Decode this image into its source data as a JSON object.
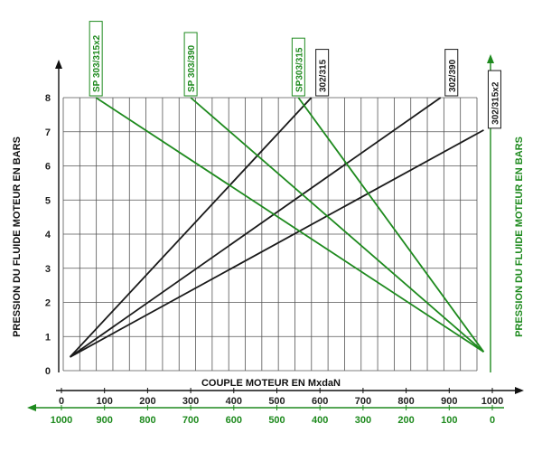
{
  "chart_data": {
    "type": "line",
    "title": "",
    "xlabel": "COUPLE MOTEUR EN MxdaN",
    "ylabel": "PRESSION DU FLUIDE MOTEUR EN BARS",
    "ylabel_right": "PRESSION DU FLUIDE MOTEUR EN BARS",
    "x_ticks_top": [
      0,
      100,
      200,
      300,
      400,
      500,
      600,
      700,
      800,
      900,
      1000
    ],
    "x_ticks_bottom": [
      1000,
      900,
      800,
      700,
      600,
      500,
      400,
      300,
      200,
      100,
      0
    ],
    "y_ticks": [
      0,
      1,
      2,
      3,
      4,
      5,
      6,
      7,
      8
    ],
    "xlim": [
      0,
      1000
    ],
    "ylim": [
      0,
      8
    ],
    "grid": true,
    "colors": {
      "black_series": "#1a1a1a",
      "green_series": "#1e8a1e"
    },
    "series": [
      {
        "name": "302/315",
        "color": "black",
        "x": [
          20,
          580
        ],
        "y": [
          0.4,
          8.0
        ]
      },
      {
        "name": "302/390",
        "color": "black",
        "x": [
          20,
          880
        ],
        "y": [
          0.4,
          8.0
        ]
      },
      {
        "name": "302/315x2",
        "color": "black",
        "x": [
          20,
          980
        ],
        "y": [
          0.4,
          7.05
        ]
      },
      {
        "name": "SP 303/315x2",
        "color": "green",
        "x": [
          80,
          980
        ],
        "y": [
          8.0,
          0.55
        ]
      },
      {
        "name": "SP 303/390",
        "color": "green",
        "x": [
          300,
          980
        ],
        "y": [
          8.0,
          0.55
        ]
      },
      {
        "name": "SP303/315",
        "color": "green",
        "x": [
          550,
          980
        ],
        "y": [
          8.0,
          0.55
        ]
      }
    ]
  }
}
